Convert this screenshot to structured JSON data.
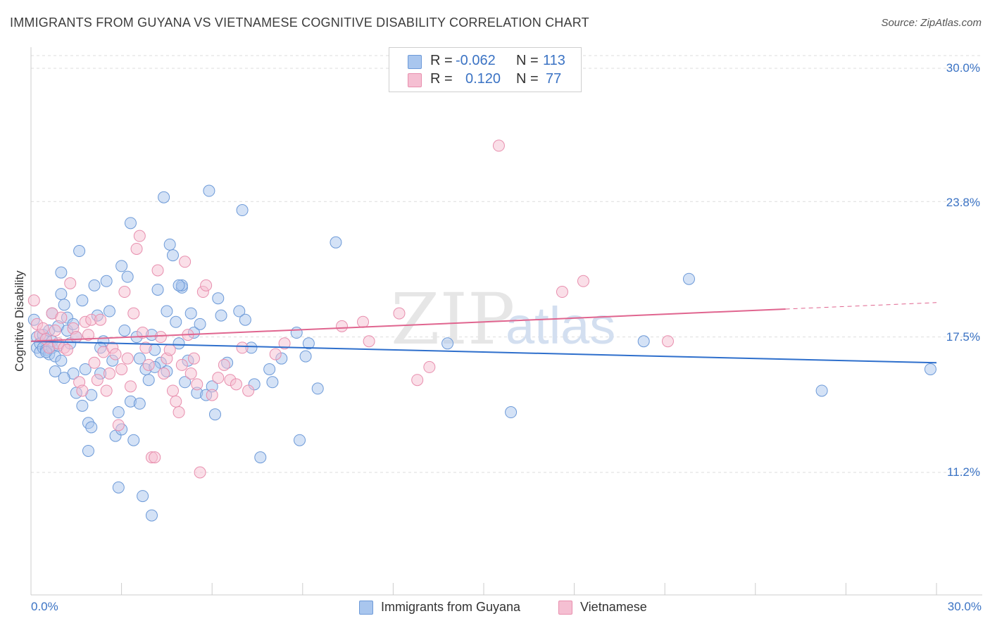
{
  "header": {
    "title": "IMMIGRANTS FROM GUYANA VS VIETNAMESE COGNITIVE DISABILITY CORRELATION CHART",
    "source": "Source: ZipAtlas.com"
  },
  "legend": {
    "rows": [
      {
        "r_label": "R =",
        "r_value": "-0.062",
        "n_label": "N =",
        "n_value": "113"
      },
      {
        "r_label": "R =",
        "r_value": "0.120",
        "n_label": "N =",
        "n_value": "77"
      }
    ],
    "bottom": [
      {
        "label": "Immigrants from Guyana"
      },
      {
        "label": "Vietnamese"
      }
    ]
  },
  "watermark": {
    "zip": "ZIP",
    "atlas": "atlas"
  },
  "colors": {
    "blue_fill": "#a9c6ee",
    "blue_stroke": "#6d9ad8",
    "blue_line": "#2e6fcc",
    "pink_fill": "#f5bfd2",
    "pink_stroke": "#e88fae",
    "pink_line": "#e0658f",
    "tick_text": "#3b73c4",
    "grid": "#dddddd"
  },
  "chart_data": {
    "type": "scatter",
    "title": "IMMIGRANTS FROM GUYANA VS VIETNAMESE COGNITIVE DISABILITY CORRELATION CHART",
    "xlabel": "",
    "ylabel": "Cognitive Disability",
    "xlim": [
      0,
      30
    ],
    "ylim": [
      4,
      31
    ],
    "x_tick_labels": [
      "0.0%",
      "30.0%"
    ],
    "y_ticks": [
      11.2,
      17.5,
      23.8,
      30.0
    ],
    "y_tick_labels": [
      "11.2%",
      "17.5%",
      "23.8%",
      "30.0%"
    ],
    "grid": "horizontal dashed",
    "legend_position": "top-center",
    "series": [
      {
        "name": "Immigrants from Guyana",
        "color": "#6d9ad8",
        "r": -0.062,
        "n": 113,
        "trend": {
          "x": [
            0,
            30
          ],
          "y": [
            17.3,
            16.3
          ]
        },
        "points": [
          [
            0.1,
            18.3
          ],
          [
            0.2,
            17.5
          ],
          [
            0.2,
            17.0
          ],
          [
            0.3,
            17.2
          ],
          [
            0.3,
            16.8
          ],
          [
            0.4,
            17.6
          ],
          [
            0.4,
            17.0
          ],
          [
            0.5,
            16.9
          ],
          [
            0.5,
            17.4
          ],
          [
            0.6,
            17.8
          ],
          [
            0.6,
            16.7
          ],
          [
            0.7,
            17.3
          ],
          [
            0.7,
            17.0
          ],
          [
            0.8,
            16.6
          ],
          [
            0.9,
            17.1
          ],
          [
            0.9,
            18.0
          ],
          [
            1.0,
            19.5
          ],
          [
            1.0,
            20.5
          ],
          [
            1.1,
            19.0
          ],
          [
            1.2,
            17.8
          ],
          [
            1.3,
            17.2
          ],
          [
            1.4,
            15.8
          ],
          [
            1.5,
            14.9
          ],
          [
            1.5,
            17.5
          ],
          [
            1.6,
            21.5
          ],
          [
            1.7,
            19.2
          ],
          [
            1.8,
            16.0
          ],
          [
            1.9,
            13.5
          ],
          [
            1.9,
            12.2
          ],
          [
            2.0,
            13.3
          ],
          [
            2.1,
            19.9
          ],
          [
            2.2,
            18.5
          ],
          [
            2.3,
            15.8
          ],
          [
            2.4,
            17.3
          ],
          [
            2.5,
            20.1
          ],
          [
            2.6,
            18.7
          ],
          [
            2.8,
            12.9
          ],
          [
            2.9,
            10.5
          ],
          [
            3.0,
            13.2
          ],
          [
            3.0,
            20.8
          ],
          [
            3.2,
            20.3
          ],
          [
            3.3,
            22.8
          ],
          [
            3.4,
            12.7
          ],
          [
            3.5,
            17.5
          ],
          [
            3.6,
            16.5
          ],
          [
            3.7,
            10.1
          ],
          [
            3.8,
            16.0
          ],
          [
            3.9,
            15.5
          ],
          [
            4.0,
            17.6
          ],
          [
            4.1,
            16.9
          ],
          [
            4.2,
            19.7
          ],
          [
            4.3,
            16.3
          ],
          [
            4.4,
            24.0
          ],
          [
            4.5,
            18.7
          ],
          [
            4.5,
            15.9
          ],
          [
            4.6,
            21.8
          ],
          [
            4.7,
            21.3
          ],
          [
            4.8,
            18.2
          ],
          [
            4.9,
            17.2
          ],
          [
            5.0,
            19.8
          ],
          [
            5.1,
            15.4
          ],
          [
            5.2,
            16.4
          ],
          [
            5.3,
            18.6
          ],
          [
            5.4,
            17.7
          ],
          [
            5.5,
            14.9
          ],
          [
            5.6,
            18.1
          ],
          [
            5.8,
            14.8
          ],
          [
            5.9,
            24.3
          ],
          [
            6.0,
            15.2
          ],
          [
            6.1,
            13.9
          ],
          [
            6.2,
            19.3
          ],
          [
            6.3,
            18.5
          ],
          [
            6.5,
            16.3
          ],
          [
            6.9,
            18.7
          ],
          [
            7.0,
            23.4
          ],
          [
            7.1,
            18.3
          ],
          [
            7.3,
            17.0
          ],
          [
            7.4,
            15.3
          ],
          [
            7.6,
            11.9
          ],
          [
            7.9,
            16.0
          ],
          [
            8.0,
            15.4
          ],
          [
            8.3,
            16.5
          ],
          [
            8.8,
            17.7
          ],
          [
            8.9,
            12.7
          ],
          [
            9.1,
            16.6
          ],
          [
            9.2,
            17.2
          ],
          [
            9.5,
            15.1
          ],
          [
            10.1,
            21.9
          ],
          [
            13.8,
            17.2
          ],
          [
            15.9,
            14.0
          ],
          [
            20.3,
            17.3
          ],
          [
            21.8,
            20.2
          ],
          [
            26.2,
            15.0
          ],
          [
            29.8,
            16.0
          ],
          [
            2.9,
            14.0
          ],
          [
            3.3,
            14.5
          ],
          [
            1.0,
            16.4
          ],
          [
            1.2,
            18.4
          ],
          [
            2.0,
            14.8
          ],
          [
            1.7,
            14.3
          ],
          [
            0.8,
            15.9
          ],
          [
            3.1,
            17.8
          ],
          [
            4.0,
            9.2
          ],
          [
            2.7,
            16.4
          ],
          [
            2.3,
            17.0
          ],
          [
            1.4,
            18.1
          ],
          [
            0.5,
            16.8
          ],
          [
            0.7,
            18.6
          ],
          [
            5.0,
            19.9
          ],
          [
            3.6,
            14.4
          ],
          [
            1.1,
            15.6
          ],
          [
            4.1,
            16.1
          ],
          [
            4.9,
            19.9
          ]
        ]
      },
      {
        "name": "Vietnamese",
        "color": "#e88fae",
        "r": 0.12,
        "n": 77,
        "trend": {
          "x": [
            0,
            25
          ],
          "y": [
            17.3,
            18.8
          ],
          "dashed_to": {
            "x": 30,
            "y": 19.1
          }
        },
        "points": [
          [
            0.1,
            19.2
          ],
          [
            0.2,
            18.1
          ],
          [
            0.3,
            17.6
          ],
          [
            0.4,
            17.9
          ],
          [
            0.5,
            17.4
          ],
          [
            0.6,
            17.0
          ],
          [
            0.7,
            18.6
          ],
          [
            0.8,
            17.8
          ],
          [
            0.9,
            17.2
          ],
          [
            1.0,
            18.4
          ],
          [
            1.1,
            17.0
          ],
          [
            1.2,
            16.9
          ],
          [
            1.3,
            20.0
          ],
          [
            1.4,
            17.9
          ],
          [
            1.5,
            17.5
          ],
          [
            1.6,
            15.4
          ],
          [
            1.7,
            15.0
          ],
          [
            1.8,
            18.2
          ],
          [
            1.9,
            17.6
          ],
          [
            2.0,
            18.3
          ],
          [
            2.1,
            16.3
          ],
          [
            2.2,
            15.5
          ],
          [
            2.3,
            18.3
          ],
          [
            2.4,
            16.8
          ],
          [
            2.5,
            15.0
          ],
          [
            2.6,
            15.8
          ],
          [
            2.7,
            17.0
          ],
          [
            2.8,
            16.7
          ],
          [
            2.9,
            13.4
          ],
          [
            3.0,
            16.0
          ],
          [
            3.1,
            19.6
          ],
          [
            3.2,
            16.5
          ],
          [
            3.3,
            15.2
          ],
          [
            3.4,
            18.6
          ],
          [
            3.5,
            21.6
          ],
          [
            3.6,
            22.2
          ],
          [
            3.7,
            17.7
          ],
          [
            3.8,
            17.0
          ],
          [
            3.9,
            16.2
          ],
          [
            4.0,
            11.9
          ],
          [
            4.1,
            11.9
          ],
          [
            4.2,
            20.6
          ],
          [
            4.3,
            17.5
          ],
          [
            4.4,
            15.8
          ],
          [
            4.5,
            16.5
          ],
          [
            4.6,
            16.9
          ],
          [
            4.7,
            15.0
          ],
          [
            4.8,
            14.5
          ],
          [
            4.9,
            14.0
          ],
          [
            5.0,
            16.2
          ],
          [
            5.1,
            21.0
          ],
          [
            5.2,
            17.6
          ],
          [
            5.3,
            15.8
          ],
          [
            5.4,
            16.5
          ],
          [
            5.5,
            15.3
          ],
          [
            5.6,
            11.2
          ],
          [
            5.7,
            19.6
          ],
          [
            5.8,
            19.9
          ],
          [
            6.0,
            14.8
          ],
          [
            6.2,
            15.6
          ],
          [
            6.4,
            16.2
          ],
          [
            6.6,
            15.5
          ],
          [
            6.8,
            15.3
          ],
          [
            7.0,
            17.0
          ],
          [
            7.2,
            15.0
          ],
          [
            8.1,
            16.7
          ],
          [
            8.4,
            17.2
          ],
          [
            10.3,
            18.0
          ],
          [
            11.0,
            18.2
          ],
          [
            11.2,
            17.3
          ],
          [
            12.2,
            18.6
          ],
          [
            12.8,
            15.5
          ],
          [
            13.2,
            16.1
          ],
          [
            15.5,
            26.4
          ],
          [
            17.6,
            19.6
          ],
          [
            18.3,
            20.1
          ],
          [
            21.1,
            17.3
          ]
        ]
      }
    ]
  }
}
